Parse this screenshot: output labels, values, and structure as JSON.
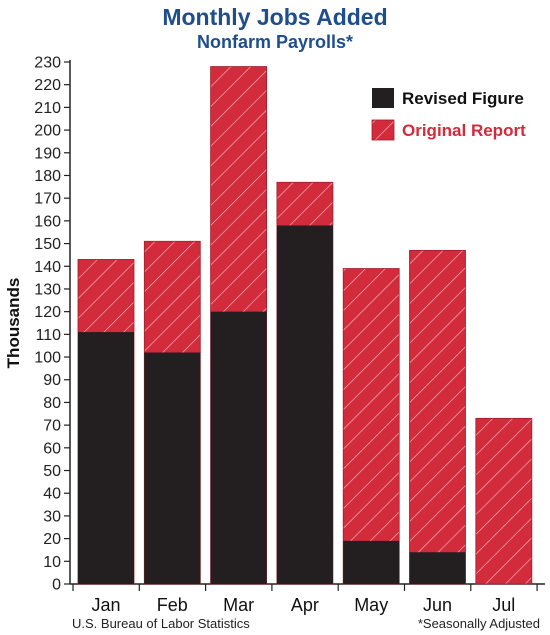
{
  "title": "Monthly Jobs Added",
  "subtitle": "Nonfarm Payrolls*",
  "colors": {
    "revised": "#231f20",
    "original": "#d22b3b",
    "title": "#1f4e8c"
  },
  "footer": {
    "source": "U.S. Bureau of Labor Statistics",
    "note": "*Seasonally Adjusted"
  },
  "chart_data": {
    "type": "bar",
    "title": "Monthly Jobs Added",
    "subtitle": "Nonfarm Payrolls*",
    "xlabel": "",
    "ylabel": "Thousands",
    "ylim": [
      0,
      230
    ],
    "yticks": [
      0,
      10,
      20,
      30,
      40,
      50,
      60,
      70,
      80,
      90,
      100,
      110,
      120,
      130,
      140,
      150,
      160,
      170,
      180,
      190,
      200,
      210,
      220,
      230
    ],
    "categories": [
      "Jan",
      "Feb",
      "Mar",
      "Apr",
      "May",
      "Jun",
      "Jul"
    ],
    "series": [
      {
        "name": "Revised Figure",
        "values": [
          111,
          102,
          120,
          158,
          19,
          14,
          null
        ]
      },
      {
        "name": "Original Report",
        "values": [
          143,
          151,
          228,
          177,
          139,
          147,
          73
        ]
      }
    ],
    "legend": {
      "position": "top-right",
      "entries": [
        "Revised Figure",
        "Original Report"
      ]
    },
    "grid": false
  }
}
